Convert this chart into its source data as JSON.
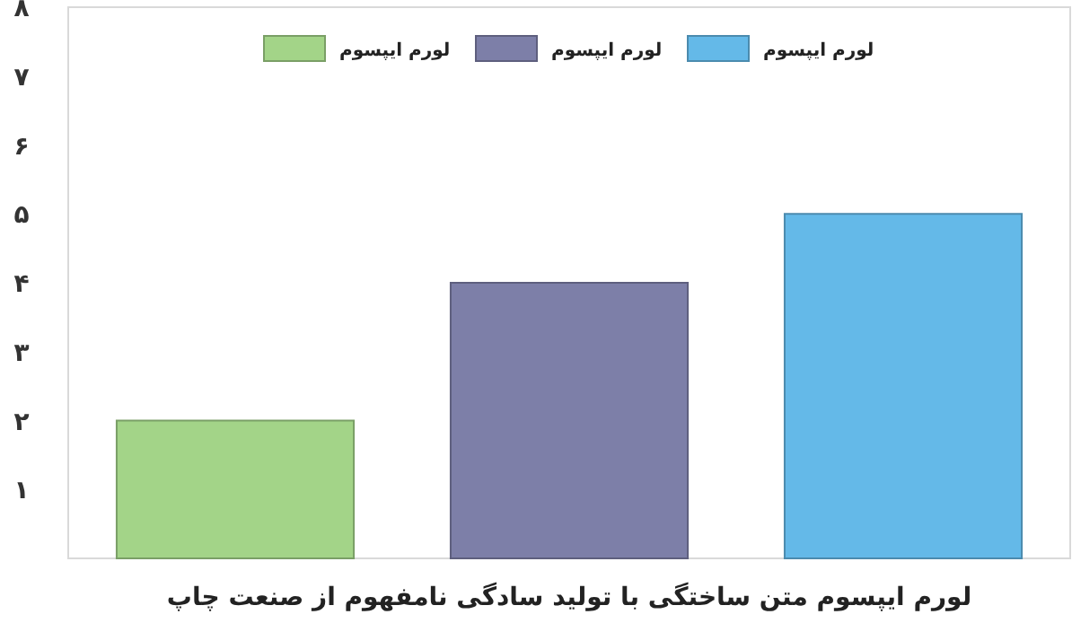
{
  "chart_data": {
    "type": "bar",
    "xlabel": "لورم ایپسوم متن ساختگی با تولید سادگی نامفهوم از صنعت چاپ",
    "categories": [
      null,
      null,
      null
    ],
    "series": [
      {
        "name": "لورم ایپسوم",
        "color": "#64b9e8",
        "values": [
          null,
          null,
          5
        ]
      },
      {
        "name": "لورم ایپسوم",
        "color": "#7d7fa8",
        "values": [
          null,
          4,
          null
        ]
      },
      {
        "name": "لورم ایپسوم",
        "color": "#a3d488",
        "values": [
          2,
          null,
          null
        ]
      }
    ],
    "ylim": [
      0,
      8
    ],
    "yticks": [
      {
        "value": 1,
        "label": "۱"
      },
      {
        "value": 2,
        "label": "۲"
      },
      {
        "value": 3,
        "label": "۳"
      },
      {
        "value": 4,
        "label": "۴"
      },
      {
        "value": 5,
        "label": "۵"
      },
      {
        "value": 6,
        "label": "۶"
      },
      {
        "value": 7,
        "label": "۷"
      },
      {
        "value": 8,
        "label": "۸"
      }
    ],
    "grid": false,
    "stacked": true,
    "legend": "top"
  }
}
